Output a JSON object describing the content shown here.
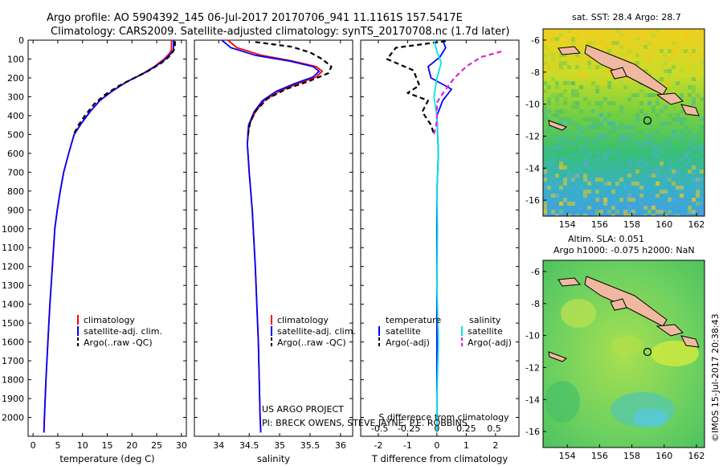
{
  "header": {
    "line1": "Argo profile: AO 5904392_145 06-Jul-2017 20170706_941 11.1161S 157.5417E",
    "line2": "Climatology: CARS2009. Satellite-adjusted climatology: synTS_20170708.nc (1.7d later)"
  },
  "credits": {
    "line1": "US ARGO PROJECT",
    "line2": "PI: BRECK OWENS, STEVE JAYNE, P.E. ROBBINS",
    "stamp": "©IMOS 15-Jul-2017 20:38:43"
  },
  "colors": {
    "clim": "#ff0000",
    "sat": "#0000ff",
    "argo": "#000000",
    "sal_sat": "#00e5e5",
    "sal_argo": "#e020e0"
  },
  "chart_data": [
    {
      "id": "temperature",
      "type": "line",
      "xlabel": "temperature (deg C)",
      "ylabel": "",
      "xlim": [
        -1,
        31
      ],
      "ylim": [
        2100,
        0
      ],
      "xticks": [
        0,
        5,
        10,
        15,
        20,
        25,
        30
      ],
      "yticks": [
        0,
        100,
        200,
        300,
        400,
        500,
        600,
        700,
        800,
        900,
        1000,
        1100,
        1200,
        1300,
        1400,
        1500,
        1600,
        1700,
        1800,
        1900,
        2000
      ],
      "legend": [
        "climatology",
        "satellite-adj. clim.",
        "Argo(..raw -QC)"
      ],
      "series": [
        {
          "name": "climatology",
          "color": "#ff0000",
          "dash": "",
          "points": [
            [
              28.0,
              0
            ],
            [
              28.0,
              50
            ],
            [
              27.6,
              70
            ],
            [
              26.5,
              100
            ],
            [
              24.5,
              140
            ],
            [
              22.0,
              180
            ],
            [
              19.0,
              220
            ],
            [
              16.0,
              270
            ],
            [
              13.5,
              320
            ],
            [
              11.5,
              380
            ],
            [
              9.8,
              440
            ],
            [
              8.3,
              500
            ],
            [
              7.2,
              600
            ],
            [
              6.2,
              700
            ],
            [
              5.5,
              800
            ],
            [
              4.9,
              900
            ],
            [
              4.4,
              1000
            ],
            [
              3.9,
              1200
            ],
            [
              3.4,
              1400
            ],
            [
              3.0,
              1600
            ],
            [
              2.6,
              1800
            ],
            [
              2.3,
              2000
            ],
            [
              2.2,
              2080
            ]
          ]
        },
        {
          "name": "satellite-adj. clim.",
          "color": "#0000ff",
          "dash": "",
          "points": [
            [
              28.4,
              0
            ],
            [
              28.4,
              50
            ],
            [
              27.9,
              70
            ],
            [
              26.8,
              100
            ],
            [
              24.7,
              140
            ],
            [
              22.1,
              180
            ],
            [
              19.0,
              220
            ],
            [
              16.0,
              270
            ],
            [
              13.5,
              320
            ],
            [
              11.5,
              380
            ],
            [
              9.8,
              440
            ],
            [
              8.3,
              500
            ],
            [
              7.2,
              600
            ],
            [
              6.2,
              700
            ],
            [
              5.5,
              800
            ],
            [
              4.9,
              900
            ],
            [
              4.4,
              1000
            ],
            [
              3.9,
              1200
            ],
            [
              3.4,
              1400
            ],
            [
              3.0,
              1600
            ],
            [
              2.6,
              1800
            ],
            [
              2.3,
              2000
            ],
            [
              2.2,
              2080
            ]
          ]
        },
        {
          "name": "Argo(..raw -QC)",
          "color": "#000000",
          "dash": "6,4",
          "points": [
            [
              28.7,
              5
            ],
            [
              28.7,
              40
            ],
            [
              28.3,
              60
            ],
            [
              27.4,
              90
            ],
            [
              26.0,
              120
            ],
            [
              23.5,
              160
            ],
            [
              20.5,
              200
            ],
            [
              17.5,
              240
            ],
            [
              14.5,
              290
            ],
            [
              12.3,
              340
            ],
            [
              10.5,
              400
            ],
            [
              9.2,
              450
            ],
            [
              8.2,
              500
            ]
          ]
        }
      ]
    },
    {
      "id": "salinity",
      "type": "line",
      "xlabel": "salinity",
      "ylabel": "",
      "xlim": [
        33.6,
        36.2
      ],
      "ylim": [
        2100,
        0
      ],
      "xticks": [
        34,
        34.5,
        35,
        35.5,
        36
      ],
      "legend": [
        "climatology",
        "satellite-adj. clim.",
        "Argo(..raw -QC)"
      ],
      "series": [
        {
          "name": "climatology",
          "color": "#ff0000",
          "dash": "",
          "points": [
            [
              34.15,
              0
            ],
            [
              34.3,
              40
            ],
            [
              34.7,
              80
            ],
            [
              35.2,
              110
            ],
            [
              35.6,
              140
            ],
            [
              35.7,
              165
            ],
            [
              35.6,
              195
            ],
            [
              35.3,
              230
            ],
            [
              35.0,
              270
            ],
            [
              34.75,
              320
            ],
            [
              34.6,
              380
            ],
            [
              34.5,
              450
            ],
            [
              34.47,
              550
            ],
            [
              34.5,
              700
            ],
            [
              34.55,
              900
            ],
            [
              34.6,
              1200
            ],
            [
              34.65,
              1600
            ],
            [
              34.68,
              2000
            ],
            [
              34.69,
              2080
            ]
          ]
        },
        {
          "name": "satellite-adj. clim.",
          "color": "#0000ff",
          "dash": "",
          "points": [
            [
              34.05,
              0
            ],
            [
              34.2,
              40
            ],
            [
              34.6,
              80
            ],
            [
              35.15,
              110
            ],
            [
              35.55,
              140
            ],
            [
              35.65,
              165
            ],
            [
              35.55,
              195
            ],
            [
              35.25,
              230
            ],
            [
              34.95,
              270
            ],
            [
              34.72,
              320
            ],
            [
              34.58,
              380
            ],
            [
              34.49,
              450
            ],
            [
              34.47,
              550
            ],
            [
              34.5,
              700
            ],
            [
              34.55,
              900
            ],
            [
              34.6,
              1200
            ],
            [
              34.65,
              1600
            ],
            [
              34.68,
              2000
            ],
            [
              34.69,
              2080
            ]
          ]
        },
        {
          "name": "Argo(..raw -QC)",
          "color": "#000000",
          "dash": "6,4",
          "points": [
            [
              34.6,
              10
            ],
            [
              35.2,
              35
            ],
            [
              35.5,
              65
            ],
            [
              35.7,
              100
            ],
            [
              35.85,
              140
            ],
            [
              35.8,
              175
            ],
            [
              35.5,
              215
            ],
            [
              35.1,
              260
            ],
            [
              34.8,
              310
            ],
            [
              34.62,
              370
            ],
            [
              34.52,
              430
            ],
            [
              34.48,
              500
            ]
          ]
        }
      ]
    },
    {
      "id": "difference",
      "type": "line",
      "xlabel": "T difference from climatology",
      "top_label": "S difference from climatology",
      "ylabel": "",
      "xlim": [
        -2.6,
        2.8
      ],
      "ylim": [
        2100,
        0
      ],
      "xticks": [
        -2,
        -1,
        0,
        1,
        2
      ],
      "top_ticks": [
        "-0.5",
        "-0.25",
        "0",
        "0.25",
        "0.5"
      ],
      "legend_headers": [
        "temperature",
        "salinity"
      ],
      "legend": [
        "satellite",
        "Argo(-adj)",
        "satellite",
        "Argo(-adj)"
      ],
      "series": [
        {
          "name": "satellite",
          "quantity": "temperature",
          "color": "#0000ff",
          "dash": "",
          "points": [
            [
              0.2,
              0
            ],
            [
              0.3,
              40
            ],
            [
              0.1,
              90
            ],
            [
              -0.3,
              140
            ],
            [
              -0.2,
              200
            ],
            [
              0.5,
              260
            ],
            [
              0.2,
              320
            ],
            [
              0.0,
              400
            ],
            [
              0.05,
              600
            ],
            [
              0.0,
              800
            ],
            [
              0.0,
              1200
            ],
            [
              0.0,
              1600
            ],
            [
              0.0,
              2000
            ],
            [
              0.0,
              2080
            ]
          ]
        },
        {
          "name": "Argo(-adj)",
          "quantity": "temperature",
          "color": "#000000",
          "dash": "6,4",
          "points": [
            [
              0.3,
              5
            ],
            [
              -1.4,
              40
            ],
            [
              -1.7,
              100
            ],
            [
              -0.8,
              160
            ],
            [
              -0.6,
              240
            ],
            [
              -1.0,
              280
            ],
            [
              -0.3,
              320
            ],
            [
              -0.5,
              380
            ],
            [
              -0.2,
              450
            ],
            [
              -0.1,
              500
            ]
          ]
        },
        {
          "name": "satellite",
          "quantity": "salinity",
          "color": "#00e5e5",
          "dash": "",
          "points": [
            [
              -0.1,
              0
            ],
            [
              0.0,
              60
            ],
            [
              0.15,
              120
            ],
            [
              0.0,
              200
            ],
            [
              -0.1,
              300
            ],
            [
              0.0,
              400
            ],
            [
              0.05,
              600
            ],
            [
              0.0,
              800
            ],
            [
              0.02,
              1000
            ],
            [
              0.0,
              1300
            ],
            [
              0.05,
              1600
            ],
            [
              0.0,
              1900
            ],
            [
              0.0,
              2080
            ]
          ]
        },
        {
          "name": "Argo(-adj)",
          "quantity": "salinity",
          "color": "#e020e0",
          "dash": "6,4",
          "points": [
            [
              2.2,
              60
            ],
            [
              1.5,
              90
            ],
            [
              1.0,
              140
            ],
            [
              0.6,
              200
            ],
            [
              0.3,
              260
            ],
            [
              0.0,
              330
            ],
            [
              0.0,
              380
            ],
            [
              0.0,
              430
            ],
            [
              -0.1,
              500
            ]
          ]
        }
      ]
    },
    {
      "id": "sst_map",
      "type": "heatmap",
      "title": "sat. SST: 28.4  Argo: 28.7",
      "xlim": [
        152.5,
        162.5
      ],
      "ylim": [
        -17,
        -5.3
      ],
      "xticks": [
        154,
        156,
        158,
        160,
        162
      ],
      "yticks": [
        -6,
        -8,
        -10,
        -12,
        -14,
        -16
      ],
      "profile_location": [
        157.54,
        -11.12
      ]
    },
    {
      "id": "sla_map",
      "type": "heatmap",
      "title": "Altim. SLA: 0.051",
      "subtitle": "Argo h1000: -0.075 h2000: NaN",
      "xlim": [
        152.5,
        162.5
      ],
      "ylim": [
        -17,
        -5.3
      ],
      "xticks": [
        154,
        156,
        158,
        160,
        162
      ],
      "yticks": [
        -6,
        -8,
        -10,
        -12,
        -14,
        -16
      ],
      "profile_location": [
        157.54,
        -11.12
      ]
    }
  ]
}
